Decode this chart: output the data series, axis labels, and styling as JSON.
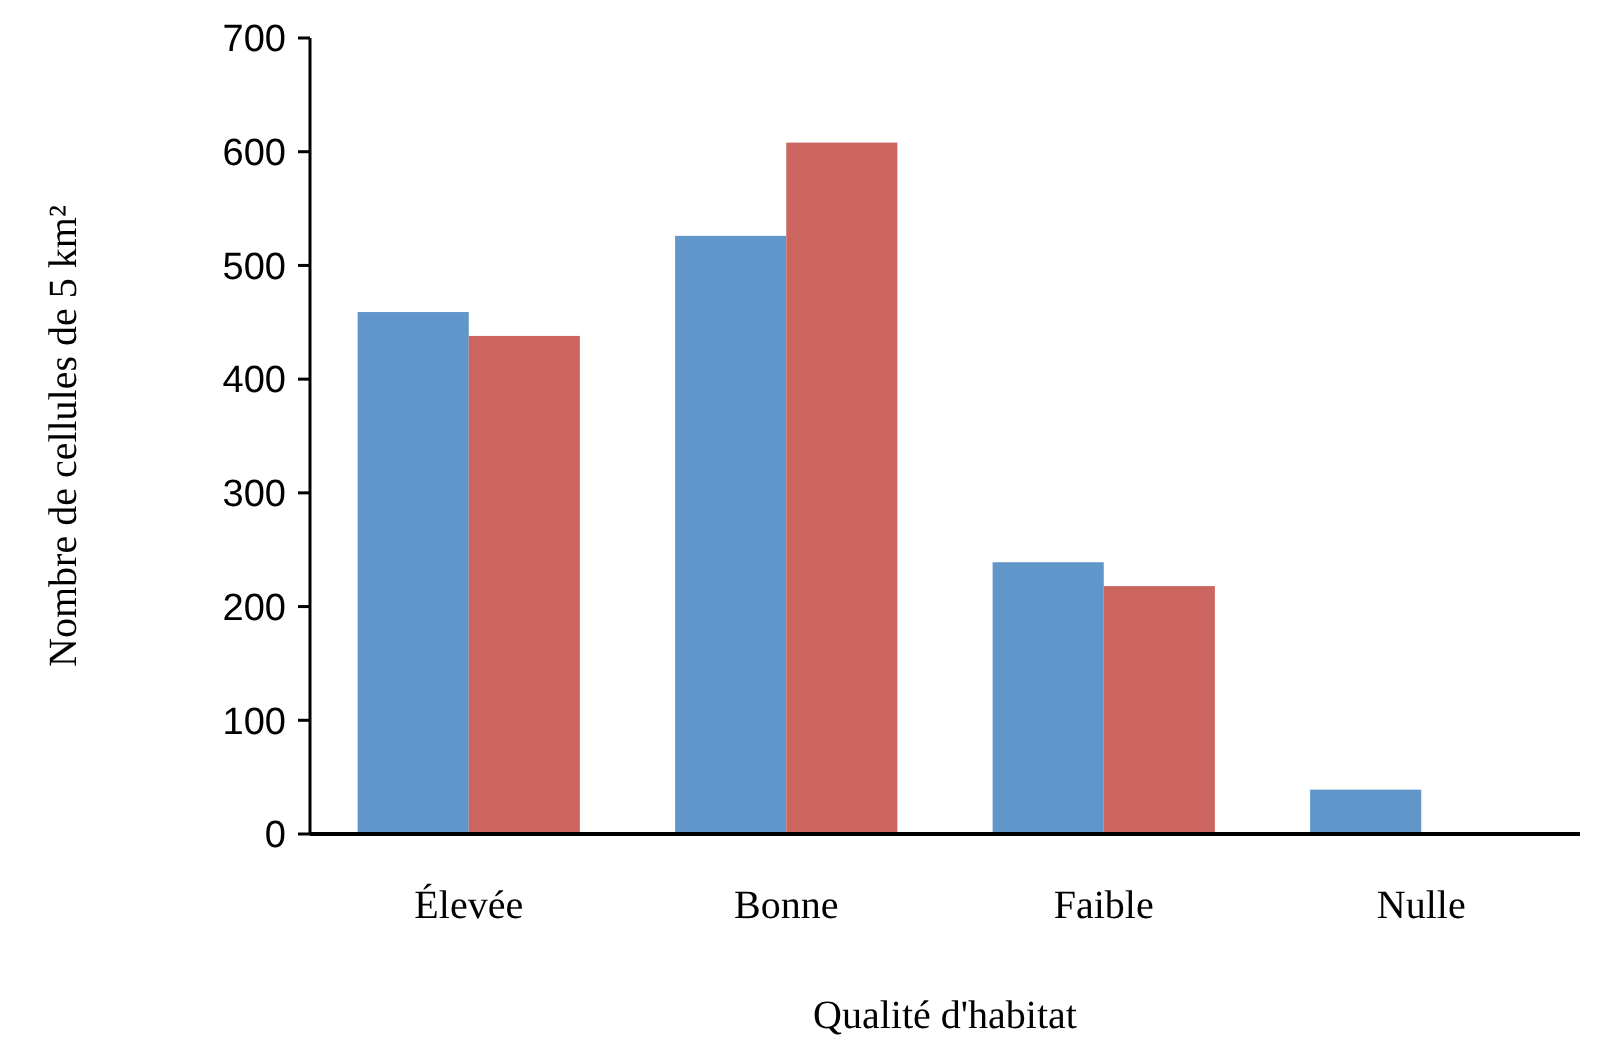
{
  "chart_data": {
    "type": "bar",
    "xlabel": "Qualité d'habitat",
    "ylabel": "Nombre de cellules de 5 km²",
    "categories": [
      "Élevée",
      "Bonne",
      "Faible",
      "Nulle"
    ],
    "series": [
      {
        "color": "#6096c9",
        "values": [
          459,
          526,
          239,
          39
        ]
      },
      {
        "color": "#cc6560",
        "values": [
          438,
          608,
          218,
          null
        ]
      }
    ],
    "ylim": [
      0,
      700
    ],
    "yticks": [
      0,
      100,
      200,
      300,
      400,
      500,
      600,
      700
    ]
  }
}
